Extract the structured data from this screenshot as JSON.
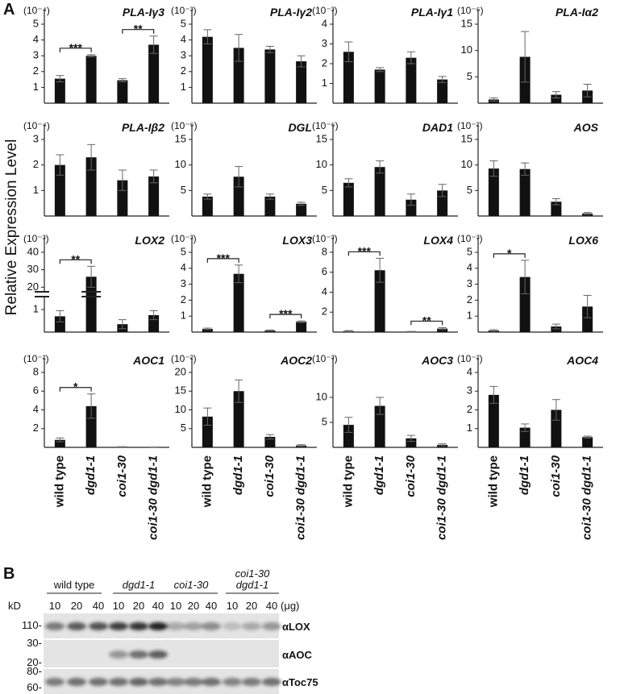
{
  "panel_a": {
    "label": "A",
    "y_label": "Relative Expression Level",
    "categories": [
      "wild type",
      "dgd1-1",
      "coi1-30",
      "coi1-30 dgd1-1"
    ]
  },
  "chart_data": [
    {
      "type": "bar",
      "title": "PLA-Iγ3",
      "scale": "(10⁻⁴)",
      "values": [
        1.55,
        3.0,
        1.45,
        3.7
      ],
      "errors": [
        0.2,
        0.07,
        0.1,
        0.55
      ],
      "ylim": [
        0,
        5
      ],
      "yticks": [
        1,
        2,
        3,
        4,
        5
      ],
      "color": "#111111",
      "significance": [
        {
          "pair": [
            0,
            1
          ],
          "label": "***"
        },
        {
          "pair": [
            2,
            3
          ],
          "label": "**"
        }
      ]
    },
    {
      "type": "bar",
      "title": "PLA-Iγ2",
      "scale": "(10⁻³)",
      "values": [
        4.2,
        3.5,
        3.4,
        2.65
      ],
      "errors": [
        0.45,
        0.85,
        0.2,
        0.35
      ],
      "ylim": [
        0,
        5
      ],
      "yticks": [
        1,
        2,
        3,
        4,
        5
      ],
      "color": "#111111"
    },
    {
      "type": "bar",
      "title": "PLA-Iγ1",
      "scale": "(10⁻³)",
      "values": [
        2.6,
        1.7,
        2.3,
        1.2
      ],
      "errors": [
        0.5,
        0.1,
        0.3,
        0.15
      ],
      "ylim": [
        0,
        4
      ],
      "yticks": [
        1,
        2,
        3,
        4
      ],
      "color": "#111111"
    },
    {
      "type": "bar",
      "title": "PLA-Iα2",
      "scale": "(10⁻⁶)",
      "values": [
        0.7,
        8.8,
        1.6,
        2.4
      ],
      "errors": [
        0.3,
        4.8,
        0.6,
        1.2
      ],
      "ylim": [
        0,
        15
      ],
      "yticks": [
        5,
        10,
        15
      ],
      "color": "#111111"
    },
    {
      "type": "bar",
      "title": "PLA-Iβ2",
      "scale": "(10⁻⁴)",
      "values": [
        2.0,
        2.3,
        1.4,
        1.55
      ],
      "errors": [
        0.4,
        0.5,
        0.4,
        0.25
      ],
      "ylim": [
        0,
        3
      ],
      "yticks": [
        1,
        2,
        3
      ],
      "color": "#111111"
    },
    {
      "type": "bar",
      "title": "DGL",
      "scale": "(10⁻⁶)",
      "values": [
        3.8,
        7.7,
        3.8,
        2.4
      ],
      "errors": [
        0.5,
        2.0,
        0.5,
        0.3
      ],
      "ylim": [
        0,
        15
      ],
      "yticks": [
        5,
        10,
        15
      ],
      "color": "#111111"
    },
    {
      "type": "bar",
      "title": "DAD1",
      "scale": "(10⁻⁶)",
      "values": [
        6.5,
        9.6,
        3.2,
        5.0
      ],
      "errors": [
        0.8,
        1.2,
        1.1,
        1.2
      ],
      "ylim": [
        0,
        15
      ],
      "yticks": [
        5,
        10,
        15
      ],
      "color": "#111111"
    },
    {
      "type": "bar",
      "title": "AOS",
      "scale": "(10⁻²)",
      "values": [
        9.3,
        9.2,
        2.8,
        0.5
      ],
      "errors": [
        1.5,
        1.2,
        0.6,
        0.2
      ],
      "ylim": [
        0,
        15
      ],
      "yticks": [
        5,
        10,
        15
      ],
      "color": "#111111"
    },
    {
      "type": "bar",
      "title": "LOX2",
      "scale": "(10⁻³)",
      "values": [
        0.7,
        26,
        0.35,
        0.75
      ],
      "errors": [
        0.25,
        6,
        0.2,
        0.2
      ],
      "ylim": [
        0,
        40
      ],
      "ybreak": [
        1.5,
        16
      ],
      "yticks": [
        1,
        20,
        30,
        40
      ],
      "color": "#111111",
      "significance": [
        {
          "pair": [
            0,
            1
          ],
          "label": "**"
        }
      ]
    },
    {
      "type": "bar",
      "title": "LOX3",
      "scale": "(10⁻³)",
      "values": [
        0.2,
        3.65,
        0.1,
        0.65
      ],
      "errors": [
        0.05,
        0.55,
        0.03,
        0.05
      ],
      "ylim": [
        0,
        5
      ],
      "yticks": [
        1,
        2,
        3,
        4,
        5
      ],
      "color": "#111111",
      "significance": [
        {
          "pair": [
            0,
            1
          ],
          "label": "***"
        },
        {
          "pair": [
            2,
            3
          ],
          "label": "***"
        }
      ]
    },
    {
      "type": "bar",
      "title": "LOX4",
      "scale": "(10⁻³)",
      "values": [
        0.1,
        6.2,
        0.05,
        0.35
      ],
      "errors": [
        0.05,
        1.2,
        0.02,
        0.1
      ],
      "ylim": [
        0,
        8
      ],
      "yticks": [
        2,
        4,
        6,
        8
      ],
      "color": "#111111",
      "significance": [
        {
          "pair": [
            0,
            1
          ],
          "label": "***"
        },
        {
          "pair": [
            2,
            3
          ],
          "label": "**"
        }
      ]
    },
    {
      "type": "bar",
      "title": "LOX6",
      "scale": "(10⁻³)",
      "values": [
        0.1,
        3.45,
        0.35,
        1.6
      ],
      "errors": [
        0.05,
        1.05,
        0.15,
        0.7
      ],
      "ylim": [
        0,
        5
      ],
      "yticks": [
        1,
        2,
        3,
        4,
        5
      ],
      "color": "#111111",
      "significance": [
        {
          "pair": [
            0,
            1
          ],
          "label": "*"
        }
      ]
    },
    {
      "type": "bar",
      "title": "AOC1",
      "scale": "(10⁻²)",
      "values": [
        0.8,
        4.4,
        0.05,
        0.02
      ],
      "errors": [
        0.2,
        1.3,
        0.02,
        0.01
      ],
      "ylim": [
        0,
        8
      ],
      "yticks": [
        2,
        4,
        6,
        8
      ],
      "color": "#111111",
      "significance": [
        {
          "pair": [
            0,
            1
          ],
          "label": "*"
        }
      ]
    },
    {
      "type": "bar",
      "title": "AOC2",
      "scale": "(10⁻²)",
      "values": [
        8.2,
        15,
        2.8,
        0.5
      ],
      "errors": [
        2.3,
        3,
        0.6,
        0.2
      ],
      "ylim": [
        0,
        20
      ],
      "yticks": [
        5,
        10,
        15,
        20
      ],
      "color": "#111111"
    },
    {
      "type": "bar",
      "title": "AOC3",
      "scale": "(10⁻³)",
      "values": [
        4.5,
        8.3,
        1.8,
        0.5
      ],
      "errors": [
        1.5,
        1.7,
        0.6,
        0.2
      ],
      "ylim": [
        0,
        15
      ],
      "yticks": [
        5,
        10
      ],
      "color": "#111111"
    },
    {
      "type": "bar",
      "title": "AOC4",
      "scale": "(10⁻²)",
      "values": [
        2.8,
        1.05,
        2.0,
        0.55
      ],
      "errors": [
        0.45,
        0.2,
        0.55,
        0.05
      ],
      "ylim": [
        0,
        4
      ],
      "yticks": [
        1,
        2,
        3,
        4
      ],
      "color": "#111111"
    }
  ],
  "blot": {
    "label": "B",
    "groups": [
      [
        "wild type"
      ],
      [
        "dgd1-1"
      ],
      [
        "coi1-30"
      ],
      [
        "coi1-30",
        "dgd1-1"
      ]
    ],
    "loads": [
      "10",
      "20",
      "40"
    ],
    "unit": "(μg)",
    "kd": "kD",
    "strips": [
      {
        "antibody": "αLOX",
        "markers": [
          "110-"
        ]
      },
      {
        "antibody": "αAOC",
        "markers": [
          "30-",
          "20-"
        ]
      },
      {
        "antibody": "αToc75",
        "markers": [
          "80-",
          "60-"
        ]
      }
    ]
  }
}
